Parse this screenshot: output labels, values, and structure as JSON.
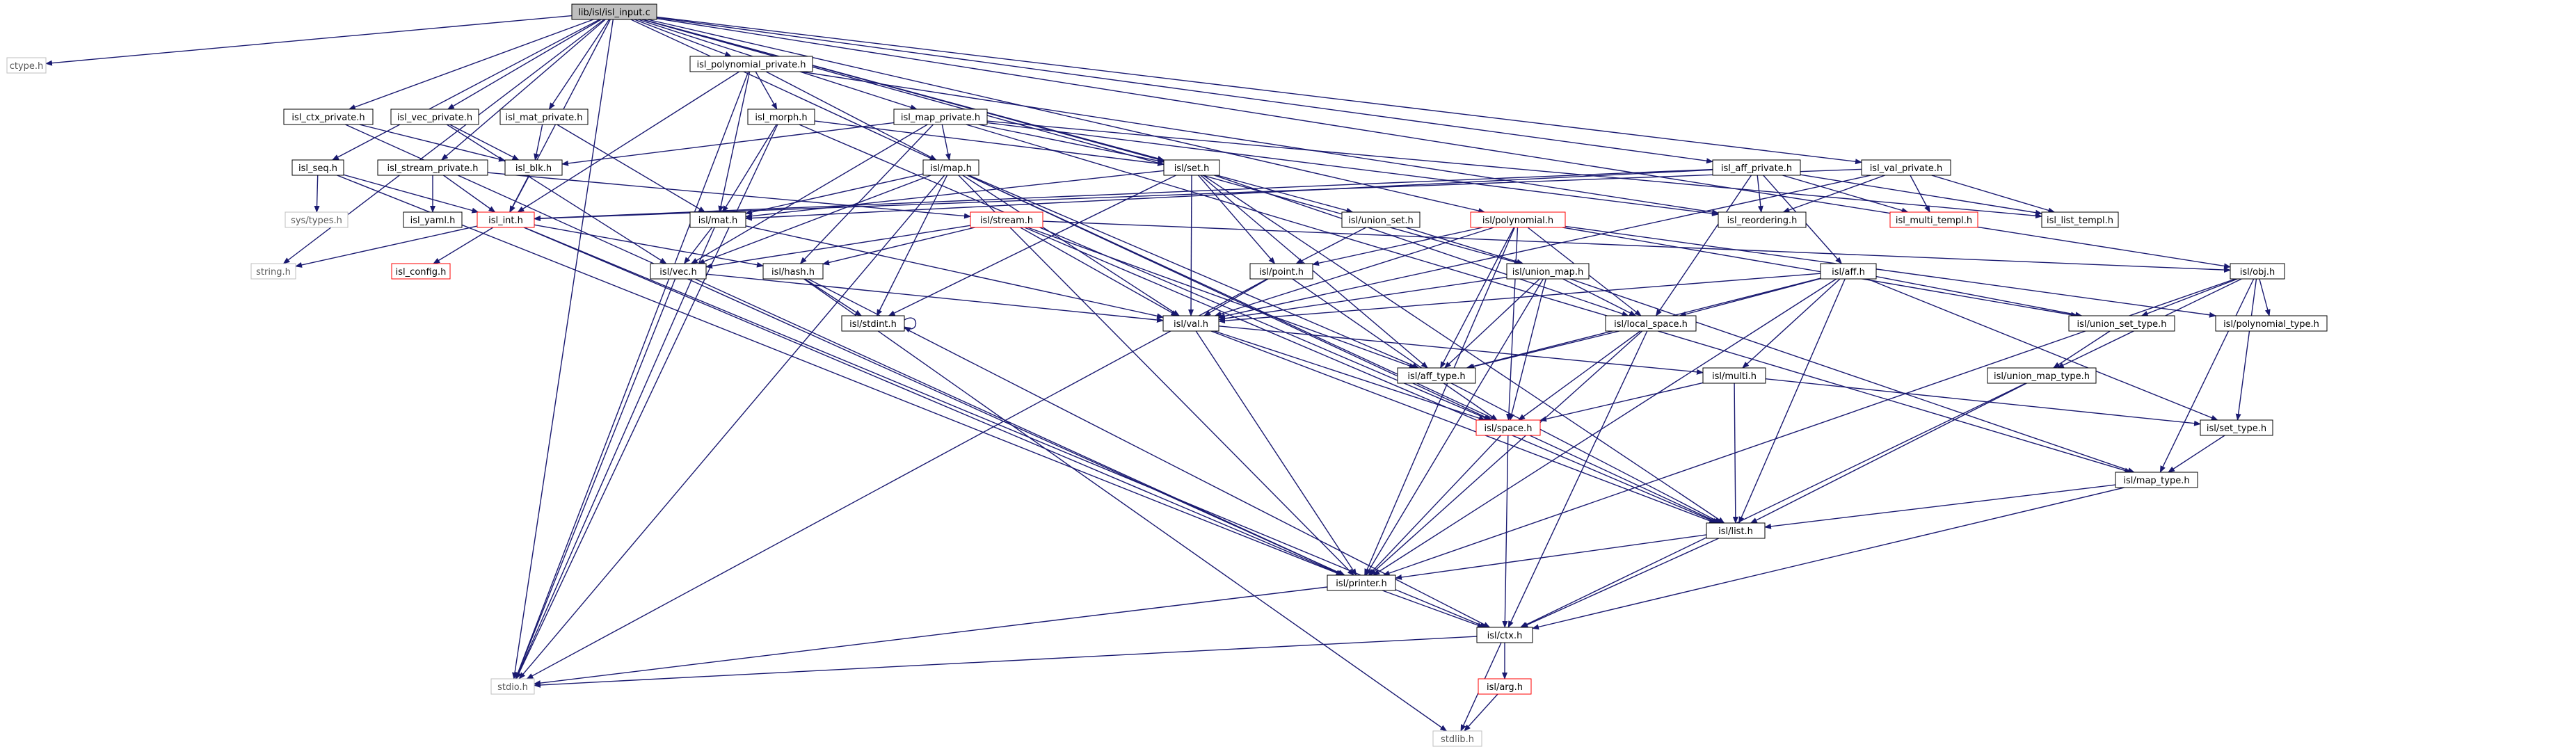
{
  "graph": {
    "root": "lib/isl/isl_input.c",
    "colors": {
      "edge": "#191970",
      "node_border": "#000000",
      "node_border_external": "#bfbfbf",
      "node_border_truncated": "#ff0000",
      "root_fill": "#bfbfbf",
      "node_fill": "#ffffff",
      "external_text": "#595959",
      "text": "#000000"
    },
    "nodes": [
      {
        "id": "root",
        "label": "lib/isl/isl_input.c",
        "kind": "root"
      },
      {
        "id": "ctype",
        "label": "ctype.h",
        "kind": "external"
      },
      {
        "id": "isl_polynomial_private",
        "label": "isl_polynomial_private.h",
        "kind": "normal"
      },
      {
        "id": "isl_ctx_private",
        "label": "isl_ctx_private.h",
        "kind": "normal"
      },
      {
        "id": "isl_vec_private",
        "label": "isl_vec_private.h",
        "kind": "normal"
      },
      {
        "id": "isl_mat_private",
        "label": "isl_mat_private.h",
        "kind": "normal"
      },
      {
        "id": "isl_morph",
        "label": "isl_morph.h",
        "kind": "normal"
      },
      {
        "id": "isl_map_private",
        "label": "isl_map_private.h",
        "kind": "normal"
      },
      {
        "id": "isl_seq",
        "label": "isl_seq.h",
        "kind": "normal"
      },
      {
        "id": "isl_stream_private",
        "label": "isl_stream_private.h",
        "kind": "normal"
      },
      {
        "id": "isl_blk",
        "label": "isl_blk.h",
        "kind": "normal"
      },
      {
        "id": "isl_set_h",
        "label": "isl/set.h",
        "kind": "normal"
      },
      {
        "id": "isl_map_h",
        "label": "isl/map.h",
        "kind": "normal"
      },
      {
        "id": "isl_aff_private",
        "label": "isl_aff_private.h",
        "kind": "normal"
      },
      {
        "id": "isl_val_private",
        "label": "isl_val_private.h",
        "kind": "normal"
      },
      {
        "id": "sys_types",
        "label": "sys/types.h",
        "kind": "external"
      },
      {
        "id": "isl_yaml",
        "label": "isl_yaml.h",
        "kind": "normal"
      },
      {
        "id": "isl_int",
        "label": "isl_int.h",
        "kind": "truncated"
      },
      {
        "id": "isl_mat_h",
        "label": "isl/mat.h",
        "kind": "normal"
      },
      {
        "id": "isl_stream_h",
        "label": "isl/stream.h",
        "kind": "truncated"
      },
      {
        "id": "isl_union_set_h",
        "label": "isl/union_set.h",
        "kind": "normal"
      },
      {
        "id": "isl_polynomial_h",
        "label": "isl/polynomial.h",
        "kind": "truncated"
      },
      {
        "id": "isl_reordering",
        "label": "isl_reordering.h",
        "kind": "normal"
      },
      {
        "id": "isl_multi_templ",
        "label": "isl_multi_templ.h",
        "kind": "truncated"
      },
      {
        "id": "isl_list_templ",
        "label": "isl_list_templ.h",
        "kind": "normal"
      },
      {
        "id": "string",
        "label": "string.h",
        "kind": "external"
      },
      {
        "id": "isl_config",
        "label": "isl_config.h",
        "kind": "truncated"
      },
      {
        "id": "isl_vec_h",
        "label": "isl/vec.h",
        "kind": "normal"
      },
      {
        "id": "isl_hash_h",
        "label": "isl/hash.h",
        "kind": "normal"
      },
      {
        "id": "isl_point_h",
        "label": "isl/point.h",
        "kind": "normal"
      },
      {
        "id": "isl_union_map_h",
        "label": "isl/union_map.h",
        "kind": "normal"
      },
      {
        "id": "isl_aff_h",
        "label": "isl/aff.h",
        "kind": "normal"
      },
      {
        "id": "isl_obj_h",
        "label": "isl/obj.h",
        "kind": "normal"
      },
      {
        "id": "isl_stdint_h",
        "label": "isl/stdint.h",
        "kind": "normal"
      },
      {
        "id": "isl_val_h",
        "label": "isl/val.h",
        "kind": "normal"
      },
      {
        "id": "isl_local_space_h",
        "label": "isl/local_space.h",
        "kind": "normal"
      },
      {
        "id": "isl_union_set_type_h",
        "label": "isl/union_set_type.h",
        "kind": "normal"
      },
      {
        "id": "isl_polynomial_type_h",
        "label": "isl/polynomial_type.h",
        "kind": "normal"
      },
      {
        "id": "isl_aff_type_h",
        "label": "isl/aff_type.h",
        "kind": "normal"
      },
      {
        "id": "isl_multi_h",
        "label": "isl/multi.h",
        "kind": "normal"
      },
      {
        "id": "isl_union_map_type_h",
        "label": "isl/union_map_type.h",
        "kind": "normal"
      },
      {
        "id": "isl_space_h",
        "label": "isl/space.h",
        "kind": "truncated"
      },
      {
        "id": "isl_set_type_h",
        "label": "isl/set_type.h",
        "kind": "normal"
      },
      {
        "id": "isl_map_type_h",
        "label": "isl/map_type.h",
        "kind": "normal"
      },
      {
        "id": "isl_list_h",
        "label": "isl/list.h",
        "kind": "normal"
      },
      {
        "id": "isl_printer_h",
        "label": "isl/printer.h",
        "kind": "normal"
      },
      {
        "id": "isl_ctx_h",
        "label": "isl/ctx.h",
        "kind": "normal"
      },
      {
        "id": "stdio",
        "label": "stdio.h",
        "kind": "external"
      },
      {
        "id": "isl_arg_h",
        "label": "isl/arg.h",
        "kind": "truncated"
      },
      {
        "id": "stdlib",
        "label": "stdlib.h",
        "kind": "external"
      }
    ],
    "edges": [
      [
        "root",
        "ctype"
      ],
      [
        "root",
        "stdio"
      ],
      [
        "root",
        "isl_polynomial_private"
      ],
      [
        "root",
        "isl_ctx_private"
      ],
      [
        "root",
        "isl_vec_private"
      ],
      [
        "root",
        "isl_mat_private"
      ],
      [
        "root",
        "isl_map_private"
      ],
      [
        "root",
        "isl_seq"
      ],
      [
        "root",
        "isl_stream_private"
      ],
      [
        "root",
        "isl_set_h"
      ],
      [
        "root",
        "isl_aff_private"
      ],
      [
        "root",
        "isl_val_private"
      ],
      [
        "root",
        "string"
      ],
      [
        "root",
        "isl_union_set_h"
      ],
      [
        "root",
        "isl_union_map_h"
      ],
      [
        "root",
        "isl_obj_h"
      ],
      [
        "root",
        "isl_list_h"
      ],
      [
        "root",
        "isl_polynomial_h"
      ],
      [
        "root",
        "isl_int"
      ],
      [
        "isl_polynomial_private",
        "stdio"
      ],
      [
        "isl_polynomial_private",
        "isl_map_h"
      ],
      [
        "isl_polynomial_private",
        "isl_morph"
      ],
      [
        "isl_polynomial_private",
        "isl_mat_h"
      ],
      [
        "isl_polynomial_private",
        "isl_reordering"
      ],
      [
        "isl_polynomial_private",
        "isl_int"
      ],
      [
        "isl_ctx_private",
        "isl_blk"
      ],
      [
        "isl_ctx_private",
        "isl_printer_h"
      ],
      [
        "isl_vec_private",
        "isl_blk"
      ],
      [
        "isl_vec_private",
        "isl_vec_h"
      ],
      [
        "isl_mat_private",
        "isl_blk"
      ],
      [
        "isl_mat_private",
        "isl_mat_h"
      ],
      [
        "isl_morph",
        "isl_mat_h"
      ],
      [
        "isl_morph",
        "isl_set_h"
      ],
      [
        "isl_morph",
        "isl_space_h"
      ],
      [
        "isl_morph",
        "stdio"
      ],
      [
        "isl_map_private",
        "isl_blk"
      ],
      [
        "isl_map_private",
        "isl_set_h"
      ],
      [
        "isl_map_private",
        "isl_map_h"
      ],
      [
        "isl_map_private",
        "isl_reordering"
      ],
      [
        "isl_map_private",
        "isl_hash_h"
      ],
      [
        "isl_map_private",
        "isl_vec_h"
      ],
      [
        "isl_map_private",
        "isl_list_templ"
      ],
      [
        "isl_map_private",
        "isl_map_type_h"
      ],
      [
        "isl_seq",
        "sys_types"
      ],
      [
        "isl_seq",
        "isl_int"
      ],
      [
        "isl_seq",
        "isl_printer_h"
      ],
      [
        "isl_stream_private",
        "isl_int"
      ],
      [
        "isl_stream_private",
        "isl_yaml"
      ],
      [
        "isl_stream_private",
        "isl_stream_h"
      ],
      [
        "isl_blk",
        "isl_int"
      ],
      [
        "isl_set_h",
        "isl_mat_h"
      ],
      [
        "isl_set_h",
        "isl_point_h"
      ],
      [
        "isl_set_h",
        "isl_val_h"
      ],
      [
        "isl_set_h",
        "isl_stdint_h"
      ],
      [
        "isl_set_h",
        "isl_local_space_h"
      ],
      [
        "isl_set_h",
        "isl_aff_type_h"
      ],
      [
        "isl_set_h",
        "isl_list_h"
      ],
      [
        "isl_map_h",
        "stdio"
      ],
      [
        "isl_map_h",
        "isl_mat_h"
      ],
      [
        "isl_map_h",
        "isl_vec_h"
      ],
      [
        "isl_map_h",
        "isl_val_h"
      ],
      [
        "isl_map_h",
        "isl_stdint_h"
      ],
      [
        "isl_map_h",
        "isl_space_h"
      ],
      [
        "isl_map_h",
        "isl_aff_type_h"
      ],
      [
        "isl_map_h",
        "isl_printer_h"
      ],
      [
        "isl_aff_private",
        "isl_mat_h"
      ],
      [
        "isl_aff_private",
        "isl_reordering"
      ],
      [
        "isl_aff_private",
        "isl_aff_h"
      ],
      [
        "isl_aff_private",
        "isl_local_space_h"
      ],
      [
        "isl_aff_private",
        "isl_multi_templ"
      ],
      [
        "isl_aff_private",
        "isl_list_templ"
      ],
      [
        "isl_aff_private",
        "isl_int"
      ],
      [
        "isl_val_private",
        "isl_int"
      ],
      [
        "isl_val_private",
        "isl_val_h"
      ],
      [
        "isl_val_private",
        "isl_reordering"
      ],
      [
        "isl_val_private",
        "isl_multi_templ"
      ],
      [
        "isl_val_private",
        "isl_list_templ"
      ],
      [
        "isl_int",
        "string"
      ],
      [
        "isl_int",
        "isl_config"
      ],
      [
        "isl_int",
        "isl_hash_h"
      ],
      [
        "isl_int",
        "isl_printer_h"
      ],
      [
        "isl_int",
        "isl_ctx_h"
      ],
      [
        "isl_mat_h",
        "isl_vec_h"
      ],
      [
        "isl_mat_h",
        "isl_val_h"
      ],
      [
        "isl_mat_h",
        "stdio"
      ],
      [
        "isl_stream_h",
        "isl_hash_h"
      ],
      [
        "isl_stream_h",
        "isl_val_h"
      ],
      [
        "isl_stream_h",
        "isl_aff_type_h"
      ],
      [
        "isl_stream_h",
        "isl_obj_h"
      ],
      [
        "isl_stream_h",
        "isl_list_h"
      ],
      [
        "isl_stream_h",
        "isl_vec_h"
      ],
      [
        "isl_union_set_h",
        "isl_point_h"
      ],
      [
        "isl_union_set_h",
        "isl_union_map_h"
      ],
      [
        "isl_polynomial_h",
        "isl_val_h"
      ],
      [
        "isl_polynomial_h",
        "isl_point_h"
      ],
      [
        "isl_polynomial_h",
        "isl_union_set_type_h"
      ],
      [
        "isl_polynomial_h",
        "isl_polynomial_type_h"
      ],
      [
        "isl_polynomial_h",
        "isl_local_space_h"
      ],
      [
        "isl_polynomial_h",
        "isl_aff_type_h"
      ],
      [
        "isl_polynomial_h",
        "isl_printer_h"
      ],
      [
        "isl_polynomial_h",
        "isl_space_h"
      ],
      [
        "isl_vec_h",
        "isl_val_h"
      ],
      [
        "isl_vec_h",
        "isl_printer_h"
      ],
      [
        "isl_vec_h",
        "stdio"
      ],
      [
        "isl_hash_h",
        "isl_stdint_h"
      ],
      [
        "isl_hash_h",
        "isl_ctx_h"
      ],
      [
        "isl_hash_h",
        "stdlib"
      ],
      [
        "isl_point_h",
        "isl_val_h"
      ],
      [
        "isl_point_h",
        "isl_space_h"
      ],
      [
        "isl_point_h",
        "stdio"
      ],
      [
        "isl_union_map_h",
        "isl_val_h"
      ],
      [
        "isl_union_map_h",
        "isl_space_h"
      ],
      [
        "isl_union_map_h",
        "isl_aff_type_h"
      ],
      [
        "isl_union_map_h",
        "isl_local_space_h"
      ],
      [
        "isl_union_map_h",
        "isl_printer_h"
      ],
      [
        "isl_union_map_h",
        "isl_map_type_h"
      ],
      [
        "isl_aff_h",
        "isl_val_h"
      ],
      [
        "isl_aff_h",
        "isl_local_space_h"
      ],
      [
        "isl_aff_h",
        "isl_union_set_type_h"
      ],
      [
        "isl_aff_h",
        "isl_aff_type_h"
      ],
      [
        "isl_aff_h",
        "isl_multi_h"
      ],
      [
        "isl_aff_h",
        "isl_set_type_h"
      ],
      [
        "isl_aff_h",
        "isl_list_h"
      ],
      [
        "isl_aff_h",
        "isl_printer_h"
      ],
      [
        "isl_obj_h",
        "isl_union_set_type_h"
      ],
      [
        "isl_obj_h",
        "isl_polynomial_type_h"
      ],
      [
        "isl_obj_h",
        "isl_union_map_type_h"
      ],
      [
        "isl_obj_h",
        "isl_set_type_h"
      ],
      [
        "isl_obj_h",
        "isl_map_type_h"
      ],
      [
        "isl_obj_h",
        "isl_printer_h"
      ],
      [
        "isl_stdint_h",
        "isl_stdint_h"
      ],
      [
        "isl_val_h",
        "isl_multi_h"
      ],
      [
        "isl_val_h",
        "isl_space_h"
      ],
      [
        "isl_val_h",
        "isl_printer_h"
      ],
      [
        "isl_val_h",
        "isl_list_h"
      ],
      [
        "isl_local_space_h",
        "isl_aff_type_h"
      ],
      [
        "isl_local_space_h",
        "isl_space_h"
      ],
      [
        "isl_local_space_h",
        "isl_printer_h"
      ],
      [
        "isl_local_space_h",
        "isl_ctx_h"
      ],
      [
        "isl_union_set_type_h",
        "isl_union_map_type_h"
      ],
      [
        "isl_aff_type_h",
        "isl_list_h"
      ],
      [
        "isl_multi_h",
        "isl_space_h"
      ],
      [
        "isl_multi_h",
        "isl_list_h"
      ],
      [
        "isl_multi_h",
        "isl_set_type_h"
      ],
      [
        "isl_union_map_type_h",
        "isl_list_h"
      ],
      [
        "isl_union_map_type_h",
        "isl_ctx_h"
      ],
      [
        "isl_space_h",
        "isl_printer_h"
      ],
      [
        "isl_space_h",
        "isl_ctx_h"
      ],
      [
        "isl_set_type_h",
        "isl_map_type_h"
      ],
      [
        "isl_map_type_h",
        "isl_list_h"
      ],
      [
        "isl_map_type_h",
        "isl_ctx_h"
      ],
      [
        "isl_list_h",
        "isl_printer_h"
      ],
      [
        "isl_list_h",
        "isl_ctx_h"
      ],
      [
        "isl_printer_h",
        "isl_ctx_h"
      ],
      [
        "isl_printer_h",
        "stdio"
      ],
      [
        "isl_ctx_h",
        "stdio"
      ],
      [
        "isl_ctx_h",
        "stdlib"
      ],
      [
        "isl_ctx_h",
        "isl_arg_h"
      ],
      [
        "isl_arg_h",
        "stdlib"
      ]
    ]
  }
}
